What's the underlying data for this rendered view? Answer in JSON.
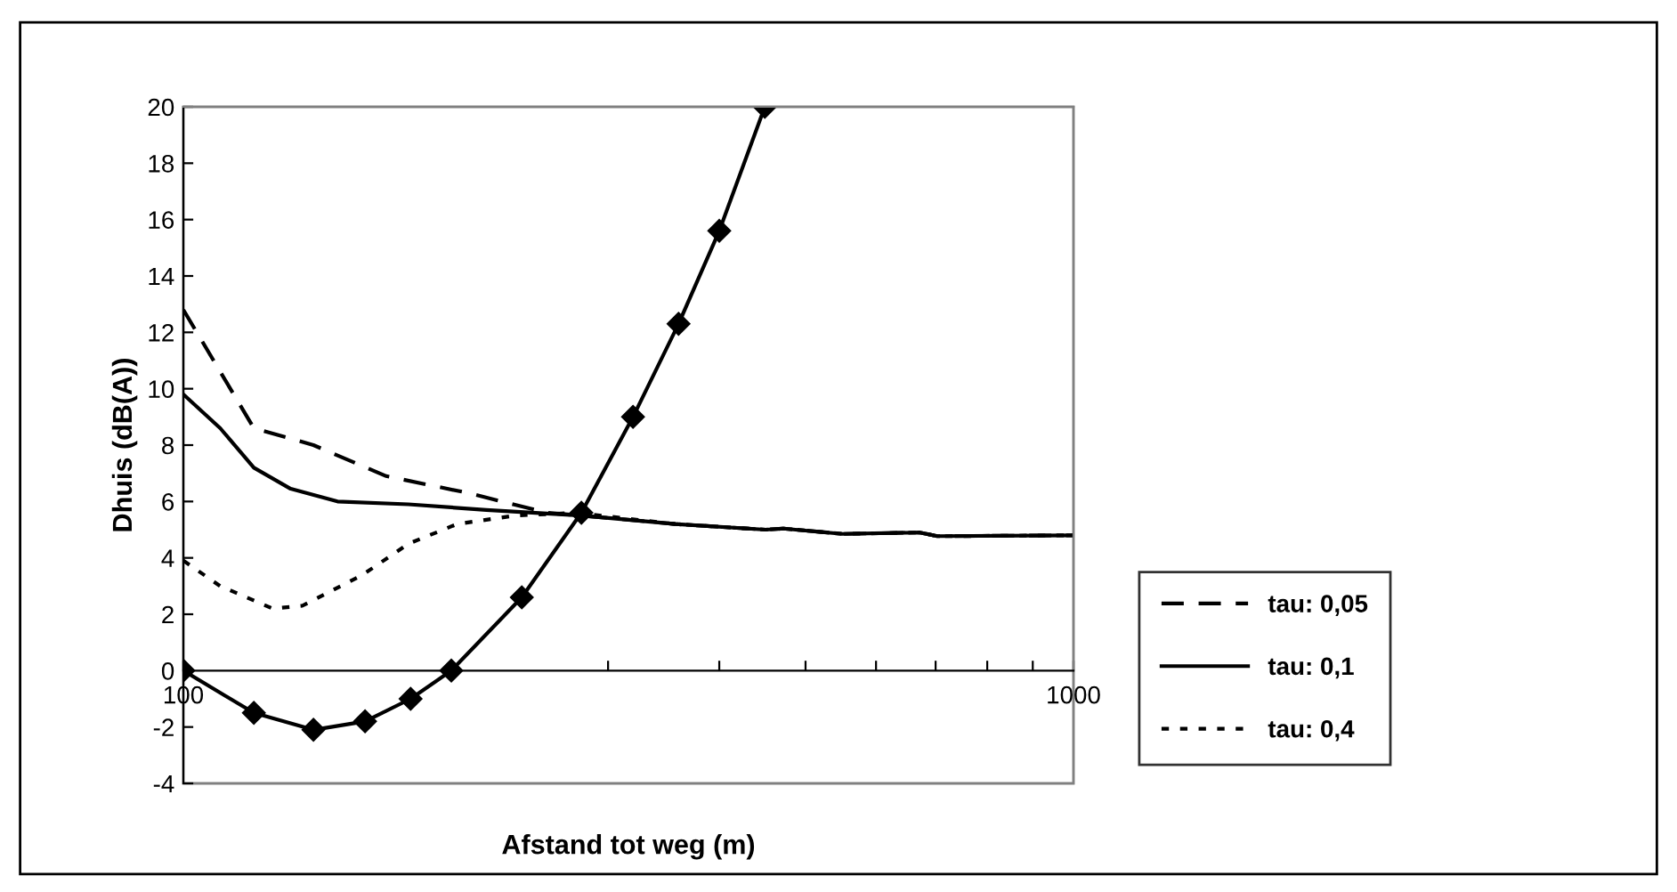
{
  "chart_data": {
    "type": "line",
    "xlabel": "Afstand tot weg (m)",
    "ylabel": "Dhuis (dB(A))",
    "log": "x",
    "xlim": [
      100,
      1000
    ],
    "xticks": [
      100,
      {
        "value": 200,
        "label": null
      },
      {
        "value": 300,
        "label": null
      },
      {
        "value": 400,
        "label": null
      },
      {
        "value": 500,
        "label": null
      },
      {
        "value": 600,
        "label": null
      },
      {
        "value": 700,
        "label": null
      },
      {
        "value": 800,
        "label": null
      },
      {
        "value": 900,
        "label": null
      },
      1000
    ],
    "ylim": [
      -4,
      20
    ],
    "yticks": [
      -4,
      -2,
      0,
      2,
      4,
      6,
      8,
      10,
      12,
      14,
      16,
      18,
      20
    ],
    "grid": false,
    "legend": "right",
    "series": [
      {
        "name": "tau: 0,05",
        "color": "#000000",
        "line_style": "dashed",
        "marker": "none",
        "x": [
          100,
          120,
          140,
          169,
          209,
          256,
          280,
          357,
          451,
          472,
          550,
          672,
          703,
          1000
        ],
        "values": [
          12.8,
          8.6,
          8.0,
          6.9,
          6.3,
          5.6,
          5.5,
          5.2,
          5.0,
          5.04,
          4.85,
          4.9,
          4.77,
          4.8
        ]
      },
      {
        "name": "tau: 0,1",
        "color": "#000000",
        "line_style": "solid",
        "marker": "none",
        "x": [
          100,
          110,
          120,
          132,
          149,
          179,
          219,
          280,
          357,
          451,
          472,
          550,
          672,
          703,
          1000
        ],
        "values": [
          9.8,
          8.6,
          7.2,
          6.45,
          6.0,
          5.9,
          5.7,
          5.5,
          5.2,
          5.0,
          5.04,
          4.85,
          4.9,
          4.77,
          4.8
        ]
      },
      {
        "name": "tau: 0,4",
        "color": "#000000",
        "line_style": "dotted",
        "marker": "none",
        "x": [
          100,
          110,
          126,
          136,
          159,
          179,
          203,
          236,
          276,
          357,
          451,
          472,
          550,
          672,
          703,
          1000
        ],
        "values": [
          3.9,
          3.0,
          2.2,
          2.3,
          3.4,
          4.5,
          5.2,
          5.5,
          5.6,
          5.2,
          5.0,
          5.04,
          4.85,
          4.9,
          4.77,
          4.8
        ]
      },
      {
        "color": "#000000",
        "line_style": "solid",
        "marker": "diamond",
        "x": [
          100,
          120,
          140,
          160,
          180,
          200,
          240,
          280,
          320,
          360,
          400,
          450
        ],
        "values": [
          0,
          -1.5,
          -2.1,
          -1.8,
          -1.0,
          0,
          2.6,
          5.6,
          9.0,
          12.3,
          15.6,
          20
        ]
      }
    ]
  }
}
